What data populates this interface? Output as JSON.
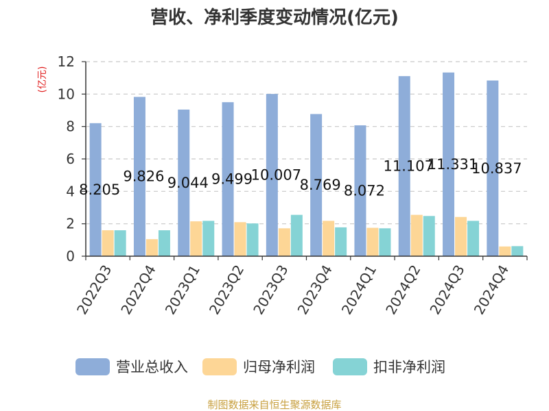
{
  "chart_data": {
    "type": "bar",
    "title": "营收、净利季度变动情况(亿元)",
    "ylabel": "(亿元)",
    "xlabel": "",
    "ylim": [
      0,
      12
    ],
    "yticks": [
      0,
      2,
      4,
      6,
      8,
      10,
      12
    ],
    "grid": true,
    "legend_position": "bottom",
    "categories": [
      "2022Q3",
      "2022Q4",
      "2023Q1",
      "2023Q2",
      "2023Q3",
      "2023Q4",
      "2024Q1",
      "2024Q2",
      "2024Q3",
      "2024Q4"
    ],
    "series": [
      {
        "name": "营业总收入",
        "color": "#8EADD9",
        "values": [
          8.205,
          9.826,
          9.044,
          9.499,
          10.007,
          8.769,
          8.072,
          11.107,
          11.331,
          10.837
        ],
        "data_labels": [
          "8.205",
          "9.826",
          "9.044",
          "9.499",
          "10.007",
          "8.769",
          "8.072",
          "11.107",
          "11.331",
          "10.837"
        ]
      },
      {
        "name": "归母净利润",
        "color": "#FDD696",
        "values": [
          1.6,
          1.05,
          2.15,
          2.1,
          1.72,
          2.18,
          1.75,
          2.55,
          2.42,
          0.6
        ]
      },
      {
        "name": "扣非净利润",
        "color": "#85D3D5",
        "values": [
          1.6,
          1.6,
          2.18,
          2.02,
          2.55,
          1.78,
          1.72,
          2.48,
          2.18,
          0.62
        ]
      }
    ],
    "source_note": "制图数据来自恒生聚源数据库"
  },
  "colors": {
    "title": "#333333",
    "axis": "#333333",
    "grid": "#C8C8C8",
    "ylabel": "#E02020",
    "source": "#C8A040"
  }
}
